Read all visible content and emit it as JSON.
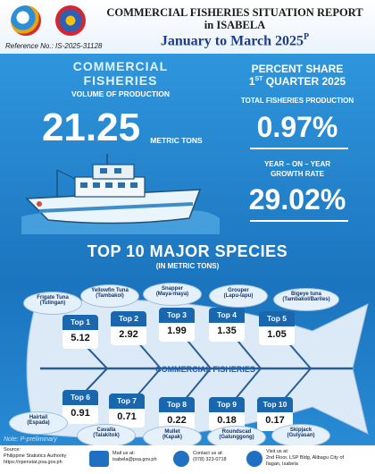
{
  "header": {
    "title_line1": "COMMERCIAL FISHERIES SITUATION REPORT",
    "title_line2": "in ISABELA",
    "period": "January to March 2025",
    "period_sup": "P",
    "reference": "Reference No.: IS-2025-31128"
  },
  "commercial": {
    "title_line1": "COMMERCIAL",
    "title_line2": "FISHERIES",
    "subtitle": "VOLUME OF PRODUCTION",
    "value": "21.25",
    "unit": "METRIC TONS"
  },
  "percent_share": {
    "title": "PERCENT SHARE",
    "quarter_prefix": "1",
    "quarter_sup": "ST",
    "quarter_rest": " QUARTER 2025",
    "tfp_label": "TOTAL FISHERIES PRODUCTION",
    "tfp_value": "0.97%",
    "yoy_label_line1": "YEAR – ON – YEAR",
    "yoy_label_line2": "GROWTH RATE",
    "yoy_value": "29.02%"
  },
  "top10": {
    "title": "TOP 10 MAJOR SPECIES",
    "subtitle": "(IN METRIC TONS)",
    "center_label": "COMMERCIAL FISHERIES",
    "ranks": [
      {
        "label": "Top 1",
        "value": "5.12"
      },
      {
        "label": "Top 2",
        "value": "2.92"
      },
      {
        "label": "Top 3",
        "value": "1.99"
      },
      {
        "label": "Top 4",
        "value": "1.35"
      },
      {
        "label": "Top 5",
        "value": "1.05"
      },
      {
        "label": "Top 6",
        "value": "0.91"
      },
      {
        "label": "Top 7",
        "value": "0.71"
      },
      {
        "label": "Top 8",
        "value": "0.22"
      },
      {
        "label": "Top 9",
        "value": "0.18"
      },
      {
        "label": "Top 10",
        "value": "0.17"
      }
    ],
    "species": [
      {
        "name": "Frigate Tuna",
        "local": "(Tulingan)"
      },
      {
        "name": "Yellowfin Tuna",
        "local": "(Tambakol)"
      },
      {
        "name": "Snapper",
        "local": "(Maya-maya)"
      },
      {
        "name": "Grouper",
        "local": "(Lapu-lapu)"
      },
      {
        "name": "Bigeye tuna",
        "local": "(Tambakol/Bariles)"
      },
      {
        "name": "Hairtail",
        "local": "(Espada)"
      },
      {
        "name": "Cavalla",
        "local": "(Talakitok)"
      },
      {
        "name": "Mullet",
        "local": "(Kapak)"
      },
      {
        "name": "Roundscad",
        "local": "(Galunggong)"
      },
      {
        "name": "Skipjack",
        "local": "(Gulyasan)"
      }
    ]
  },
  "note": "Note: P-preliminary",
  "footer": {
    "source_label": "Source:",
    "source_line1": "Philippine Statistics Authority",
    "source_line2": "https://openstat.psa.gov.ph",
    "mail_label": "Mail us at:",
    "mail_value": "isabela@psa.gov.ph",
    "contact_label": "Contact us at:",
    "contact_value": "(078) 323-0718",
    "visit_label": "Visit us at:",
    "visit_line1": "2nd Floor, LSP Bldg, Alibagu City of",
    "visit_line2": "Ilagan, Isabela"
  },
  "colors": {
    "background": "#1c79c0",
    "rank_header": "#1b67ae",
    "accent_text": "#1b3c8f"
  }
}
